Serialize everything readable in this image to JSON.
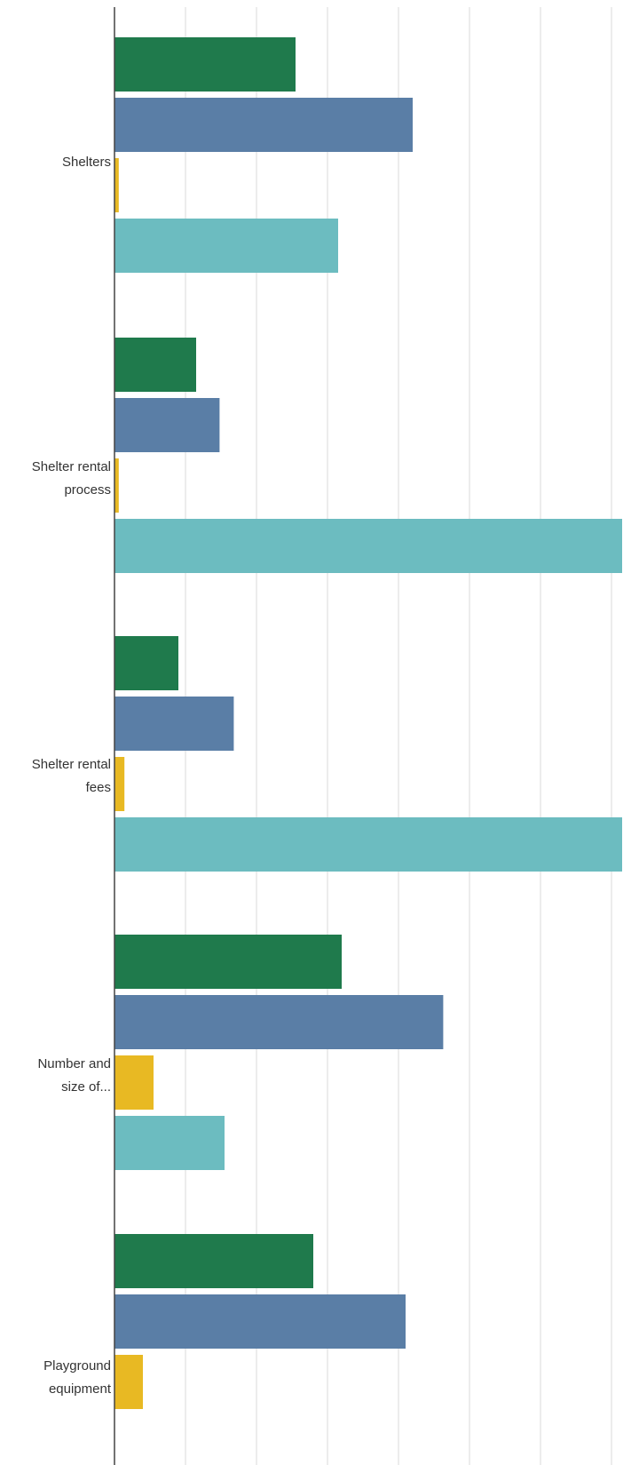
{
  "chart_data": {
    "type": "bar",
    "orientation": "horizontal",
    "categories": [
      [
        "Shelters"
      ],
      [
        "Shelter rental",
        "process"
      ],
      [
        "Shelter rental",
        "fees"
      ],
      [
        "Number and",
        "size of..."
      ],
      [
        "Playground",
        "equipment"
      ]
    ],
    "category_text": [
      "Shelters",
      "Shelter rental process",
      "Shelter rental fees",
      "Number and size of...",
      "Playground equipment"
    ],
    "series": [
      {
        "values": [
          25.5,
          11.5,
          9.0,
          32.0,
          28.0
        ]
      },
      {
        "values": [
          42.0,
          14.8,
          16.8,
          46.3,
          41.0
        ]
      },
      {
        "values": [
          0.6,
          0.6,
          1.4,
          5.5,
          4.0
        ]
      },
      {
        "values": [
          31.5,
          71.5,
          71.5,
          15.5,
          null
        ]
      }
    ],
    "xlim": [
      0,
      70
    ],
    "grid_step": 10,
    "grid": true,
    "legend": "none",
    "colors": [
      "#1f7a4c",
      "#5a7ea6",
      "#e8b923",
      "#6cbcc0"
    ],
    "grid_color": "#d9d9d9",
    "axis_color": "#444444"
  }
}
